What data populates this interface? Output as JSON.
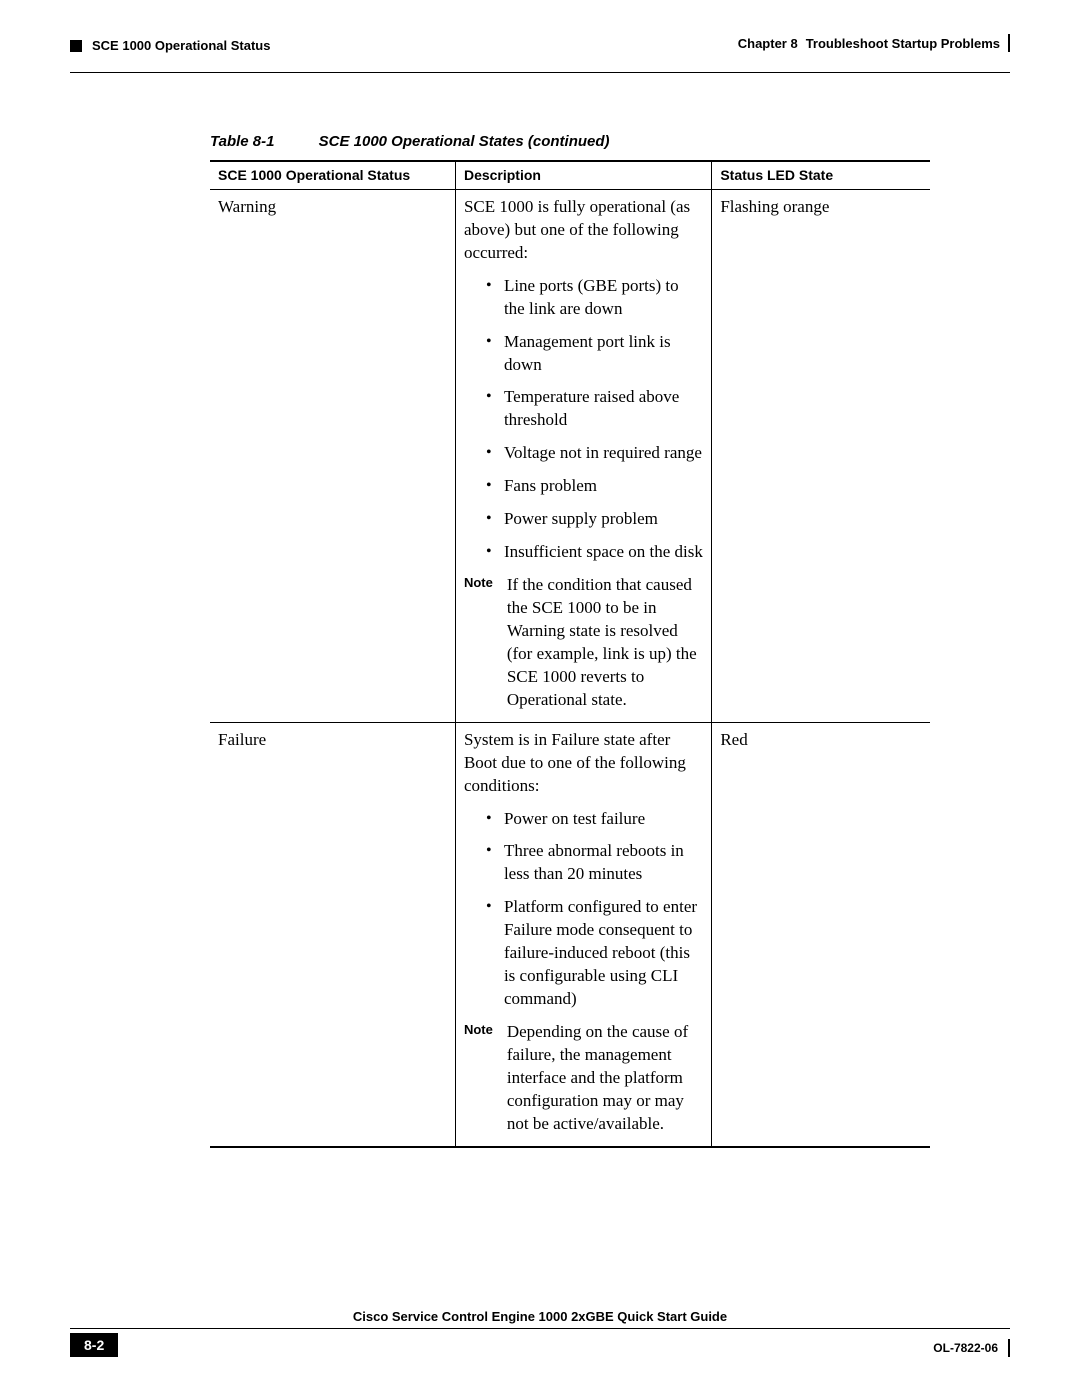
{
  "header": {
    "chapter_label": "Chapter 8",
    "chapter_title": "Troubleshoot Startup Problems",
    "section_title": "SCE 1000 Operational Status"
  },
  "table": {
    "caption_number": "Table 8-1",
    "caption_text": "SCE 1000 Operational States (continued)",
    "columns": {
      "c0": "SCE 1000 Operational Status",
      "c1": "Description",
      "c2": "Status LED State"
    },
    "rows": [
      {
        "status": "Warning",
        "led": "Flashing orange",
        "desc_intro": "SCE 1000 is fully operational (as above) but one of the following occurred:",
        "bullets": [
          "Line ports (GBE ports) to the link are down",
          "Management port link is down",
          "Temperature raised above threshold",
          "Voltage not in required range",
          "Fans problem",
          "Power supply problem",
          "Insufficient space on the disk"
        ],
        "note_label": "Note",
        "note_text": "If the condition that caused the SCE 1000 to be in Warning state is resolved (for example, link is up) the SCE 1000 reverts to Operational state."
      },
      {
        "status": "Failure",
        "led": "Red",
        "desc_intro": "System is in Failure state after Boot due to one of the following conditions:",
        "bullets": [
          "Power on test failure",
          "Three abnormal reboots in less than 20 minutes",
          "Platform configured to enter Failure mode consequent to failure-induced reboot (this is configurable using CLI command)"
        ],
        "note_label": "Note",
        "note_text": "Depending on the cause of failure, the management interface and the platform configuration may or may not be active/available."
      }
    ]
  },
  "footer": {
    "guide_title": "Cisco Service Control Engine 1000 2xGBE Quick Start Guide",
    "page_number": "8-2",
    "doc_id": "OL-7822-06"
  }
}
